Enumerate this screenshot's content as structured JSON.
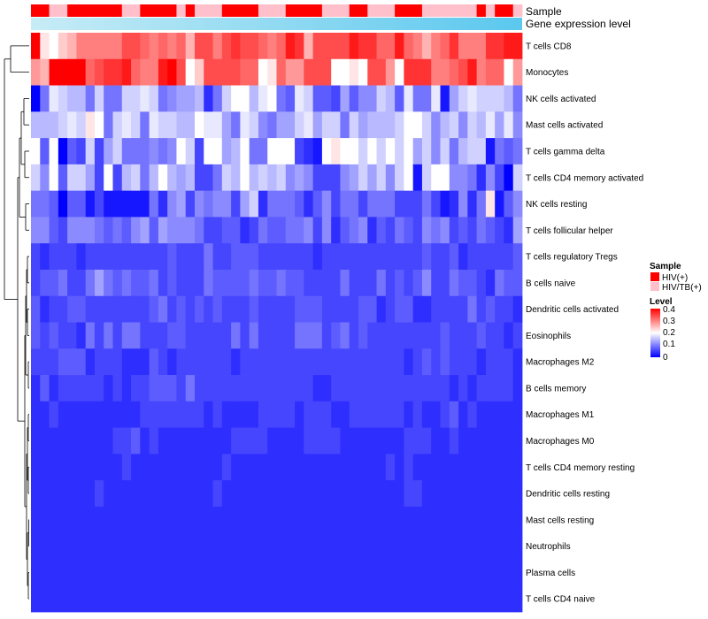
{
  "chart_data": {
    "type": "heatmap",
    "title": "",
    "annotations": {
      "sample_title": "Sample",
      "gene_expression_title": "Gene expression level"
    },
    "rows": [
      "T cells CD8",
      "Monocytes",
      "NK cells activated",
      "Mast cells activated",
      "T cells gamma delta",
      "T cells CD4 memory activated",
      "NK cells resting",
      "T cells follicular helper",
      "T cells regulatory  Tregs",
      "B cells naive",
      "Dendritic cells activated",
      "Eosinophils",
      "Macrophages M2",
      "B cells memory",
      "Macrophages M1",
      "Macrophages M0",
      "T cells CD4 memory resting",
      "Dendritic cells resting",
      "Mast cells resting",
      "Neutrophils",
      "Plasma cells",
      "T cells CD4 naive"
    ],
    "sample_groups": "HHPPHHHHHHPPHHHHPHPPPHHHHPPPHHHHPPPHHPPPHHHPPPPPPHPHHP",
    "rows_values": [
      "09a875555533454547335323345412733331224414575425552211",
      "67000043221455103b8333344a9466333aa9d336b22255431544b6",
      "zupqrruquuqqpqutssrxuqonrpmuvpqvvwsvttqrvpuupysqpqqqru",
      "rrrqpq9ouqpqupqqrroppsupqtussqpsqquqsrrrqonqtrqtqrpspt",
      "ovjzvwqwsquuututoqwonsrkuuommwxyk9onqlqlqosqtqurqqyuvu",
      "qtbvqqswjwrqurjrsrwwuqrorqrqtstwwwtsqsqtqoyqmmttuxtwzq",
      "uuvzvvywyyyyyuxtswtuttwsqxuuuvxvtwuuwuuuwwwuwyxtxu9yvt",
      "ttvwtttuvuvtsvstttuwwvvxwuvvuutwtxvutxvwuvwtutwvwuvwxs",
      "wxwwwxwwwwwwwwwvwwwuwwvvvwwwwwwxwwwwwwwwwwwvwwvxwwwwwv",
      "wvvuwwusuvuvvuwvwwwuvvvvuvvuvvwwwwuwwwuwvwvtwwuvvwxuvv",
      "vxwwvvwwwwwwwvuwvwvwvwwwvwwwwvvvwwwwvvxwvvxxwwwwuwvwwx",
      "vwvwwxuwuwuuwwwvvwwwwwuwuwwwwuuuwvuwvwwwwwwwwvwwwvwwxw",
      "wwwvvvxwwwxxxvwxwwwwwwxwwwwwwwwwwwwwwwwwwxwvwvwwwxwwwx",
      "xvxwwwwwxwxwwvvvwuwwwwwwwwwwwwwxxwwwwwwwwwwwwwxwxwwwwx",
      "xxwxxxxxxxxxwwwwwwwxwxxxxwwwwxwwwxxwwwwwwxwxxwvxwxxxxx",
      "xxxxxxxxxwwvxwxxxxxxxxwwwwxxxxwwwwxxxxxxxwwwxxwxxxxxxx",
      "xxxxxxxxxxwxxxxxxxxxxwxxxxxxxxxxxxxxxxxwxwxxxxxxxxxxxx",
      "xxxxxxxwxxxxxxxxxxxxwxxxxxxxxxxxxxxxxxxxxwwxxxxxxxxxxx",
      "xxxxxxxxxxxxxxxxxxxxxxxxxxxxxxxxxxxxxxxxxxxxxxxxxxxxxx",
      "xxxxxxxxxxxxxxxxxxxxxxxxxxxxxxxxxxxxxxxxxxxxxxxxxxxxxx",
      "xxxxxxxxxxxxxxxxxxxxxxxxxxxxxxxxxxxxxxxxxxxxxxxxxxxxxx",
      "xxxxxxxxxxxxxxxxxxxxxxxxxxxxxxxxxxxxxxxxxxxxxxxxxxxxxx"
    ],
    "value_encoding": "0=0.40 (red) ... 9=0.20 (white) ... z=0.00 (blue); step 0.05 per symbol in each half",
    "color_scale": {
      "stops": [
        {
          "value": 0.0,
          "color": "#0000ff"
        },
        {
          "value": 0.2,
          "color": "#ffffff"
        },
        {
          "value": 0.4,
          "color": "#ff0000"
        }
      ]
    },
    "gene_expression_colors": [
      "#c7ecf6",
      "#5bc8ee"
    ],
    "legend": {
      "sample_title": "Sample",
      "groups": [
        {
          "label": "HIV(+)",
          "color": "#ff0000"
        },
        {
          "label": "HIV/TB(+)",
          "color": "#ffc0cb"
        }
      ],
      "level_title": "Level",
      "level_ticks": [
        "0.4",
        "0.3",
        "0.2",
        "0.1",
        "0"
      ]
    }
  }
}
